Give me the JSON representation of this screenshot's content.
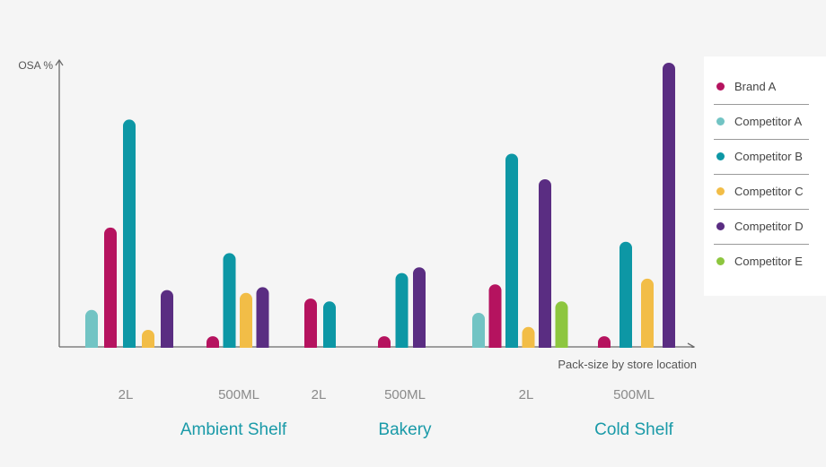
{
  "chart_data": {
    "type": "bar",
    "ylabel": "OSA %",
    "xlabel": "Pack-size by store location",
    "ylim": [
      0,
      100
    ],
    "series": [
      {
        "name": "Brand A",
        "color": "#b5135f"
      },
      {
        "name": "Competitor A",
        "color": "#72c4c4"
      },
      {
        "name": "Competitor B",
        "color": "#0d97a5"
      },
      {
        "name": "Competitor C",
        "color": "#f2bd47"
      },
      {
        "name": "Competitor D",
        "color": "#5a2d82"
      },
      {
        "name": "Competitor E",
        "color": "#8dc63f"
      }
    ],
    "groups": [
      {
        "location": "Ambient Shelf",
        "pack": "2L",
        "bars": [
          {
            "series": "Competitor A",
            "value": 13
          },
          {
            "series": "Brand A",
            "value": 42
          },
          {
            "series": "Competitor B",
            "value": 80
          },
          {
            "series": "Competitor C",
            "value": 6
          },
          {
            "series": "Competitor D",
            "value": 20
          }
        ]
      },
      {
        "location": "Ambient Shelf",
        "pack": "500ML",
        "bars": [
          {
            "series": "Brand A",
            "value": 3
          },
          {
            "series": "Competitor B",
            "value": 33
          },
          {
            "series": "Competitor C",
            "value": 19
          },
          {
            "series": "Competitor D",
            "value": 21
          }
        ]
      },
      {
        "location": "Bakery",
        "pack": "2L",
        "bars": [
          {
            "series": "Brand A",
            "value": 17
          },
          {
            "series": "Competitor B",
            "value": 16
          }
        ]
      },
      {
        "location": "Bakery",
        "pack": "500ML",
        "bars": [
          {
            "series": "Brand A",
            "value": 3
          },
          {
            "series": "Competitor B",
            "value": 26
          },
          {
            "series": "Competitor D",
            "value": 28
          }
        ]
      },
      {
        "location": "Cold Shelf",
        "pack": "2L",
        "bars": [
          {
            "series": "Competitor A",
            "value": 12
          },
          {
            "series": "Brand A",
            "value": 22
          },
          {
            "series": "Competitor B",
            "value": 68
          },
          {
            "series": "Competitor C",
            "value": 7
          },
          {
            "series": "Competitor D",
            "value": 59
          },
          {
            "series": "Competitor E",
            "value": 16
          }
        ]
      },
      {
        "location": "Cold Shelf",
        "pack": "500ML",
        "bars": [
          {
            "series": "Brand A",
            "value": 3
          },
          {
            "series": "Competitor B",
            "value": 37
          },
          {
            "series": "Competitor C",
            "value": 24
          },
          {
            "series": "Competitor D",
            "value": 100
          }
        ]
      }
    ],
    "locations": [
      "Ambient Shelf",
      "Bakery",
      "Cold Shelf"
    ],
    "legend_position": "right",
    "grid": false
  },
  "colors": {
    "axis": "#6b6b6b",
    "axis_label": "#555555",
    "pack_label": "#8a8a8a",
    "location_label": "#1a9aa8"
  }
}
